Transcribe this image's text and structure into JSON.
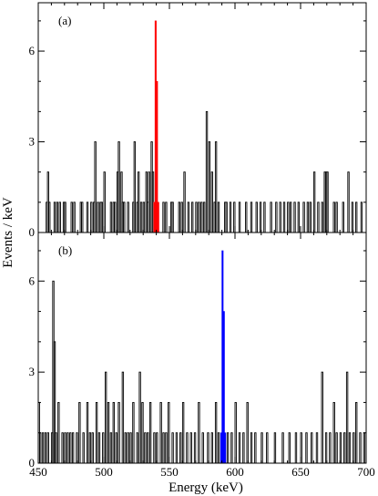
{
  "chart_data": {
    "type": "histogram",
    "xlabel": "Energy (keV)",
    "ylabel": "Events / keV",
    "xlim": [
      450,
      700
    ],
    "xticks": [
      450,
      500,
      550,
      600,
      650,
      700
    ],
    "grid": false,
    "panels": [
      {
        "label": "(a)",
        "ylim": [
          0,
          7.6
        ],
        "yticks": [
          0,
          3,
          6
        ],
        "highlight_color": "#ff0000",
        "highlight": [
          {
            "x": 538,
            "y": 1
          },
          {
            "x": 539,
            "y": 7
          },
          {
            "x": 540,
            "y": 5
          },
          {
            "x": 541,
            "y": 1
          }
        ],
        "counts": [
          {
            "x": 456,
            "y": 1
          },
          {
            "x": 457,
            "y": 2
          },
          {
            "x": 458,
            "y": 1
          },
          {
            "x": 462,
            "y": 1
          },
          {
            "x": 464,
            "y": 1
          },
          {
            "x": 466,
            "y": 1
          },
          {
            "x": 469,
            "y": 1
          },
          {
            "x": 470,
            "y": 1
          },
          {
            "x": 475,
            "y": 1
          },
          {
            "x": 477,
            "y": 1
          },
          {
            "x": 482,
            "y": 1
          },
          {
            "x": 483,
            "y": 1
          },
          {
            "x": 487,
            "y": 1
          },
          {
            "x": 490,
            "y": 1
          },
          {
            "x": 492,
            "y": 1
          },
          {
            "x": 493,
            "y": 3
          },
          {
            "x": 495,
            "y": 1
          },
          {
            "x": 497,
            "y": 1
          },
          {
            "x": 498,
            "y": 1
          },
          {
            "x": 500,
            "y": 2
          },
          {
            "x": 505,
            "y": 1
          },
          {
            "x": 507,
            "y": 1
          },
          {
            "x": 508,
            "y": 1
          },
          {
            "x": 510,
            "y": 2
          },
          {
            "x": 511,
            "y": 3
          },
          {
            "x": 513,
            "y": 2
          },
          {
            "x": 514,
            "y": 1
          },
          {
            "x": 515,
            "y": 1
          },
          {
            "x": 518,
            "y": 1
          },
          {
            "x": 522,
            "y": 1
          },
          {
            "x": 523,
            "y": 3
          },
          {
            "x": 525,
            "y": 1
          },
          {
            "x": 526,
            "y": 2
          },
          {
            "x": 528,
            "y": 1
          },
          {
            "x": 530,
            "y": 1
          },
          {
            "x": 532,
            "y": 2
          },
          {
            "x": 533,
            "y": 1
          },
          {
            "x": 534,
            "y": 2
          },
          {
            "x": 536,
            "y": 3
          },
          {
            "x": 537,
            "y": 2
          },
          {
            "x": 545,
            "y": 1
          },
          {
            "x": 547,
            "y": 1
          },
          {
            "x": 551,
            "y": 1
          },
          {
            "x": 552,
            "y": 1
          },
          {
            "x": 557,
            "y": 1
          },
          {
            "x": 559,
            "y": 1
          },
          {
            "x": 561,
            "y": 2
          },
          {
            "x": 564,
            "y": 1
          },
          {
            "x": 567,
            "y": 1
          },
          {
            "x": 570,
            "y": 1
          },
          {
            "x": 572,
            "y": 1
          },
          {
            "x": 574,
            "y": 1
          },
          {
            "x": 576,
            "y": 1
          },
          {
            "x": 578,
            "y": 4
          },
          {
            "x": 580,
            "y": 3
          },
          {
            "x": 582,
            "y": 2
          },
          {
            "x": 584,
            "y": 1
          },
          {
            "x": 585,
            "y": 3
          },
          {
            "x": 587,
            "y": 1
          },
          {
            "x": 592,
            "y": 1
          },
          {
            "x": 593,
            "y": 1
          },
          {
            "x": 596,
            "y": 1
          },
          {
            "x": 599,
            "y": 1
          },
          {
            "x": 603,
            "y": 1
          },
          {
            "x": 608,
            "y": 1
          },
          {
            "x": 612,
            "y": 1
          },
          {
            "x": 616,
            "y": 1
          },
          {
            "x": 619,
            "y": 1
          },
          {
            "x": 622,
            "y": 1
          },
          {
            "x": 627,
            "y": 1
          },
          {
            "x": 631,
            "y": 1
          },
          {
            "x": 634,
            "y": 1
          },
          {
            "x": 637,
            "y": 1
          },
          {
            "x": 640,
            "y": 1
          },
          {
            "x": 642,
            "y": 1
          },
          {
            "x": 645,
            "y": 1
          },
          {
            "x": 648,
            "y": 1
          },
          {
            "x": 652,
            "y": 1
          },
          {
            "x": 655,
            "y": 1
          },
          {
            "x": 657,
            "y": 1
          },
          {
            "x": 660,
            "y": 2
          },
          {
            "x": 663,
            "y": 1
          },
          {
            "x": 666,
            "y": 1
          },
          {
            "x": 668,
            "y": 2
          },
          {
            "x": 669,
            "y": 2
          },
          {
            "x": 670,
            "y": 2
          },
          {
            "x": 675,
            "y": 1
          },
          {
            "x": 677,
            "y": 1
          },
          {
            "x": 682,
            "y": 1
          },
          {
            "x": 686,
            "y": 2
          },
          {
            "x": 689,
            "y": 1
          },
          {
            "x": 692,
            "y": 1
          },
          {
            "x": 696,
            "y": 1
          }
        ]
      },
      {
        "label": "(b)",
        "ylim": [
          0,
          7.6
        ],
        "yticks": [
          0,
          3,
          6
        ],
        "highlight_color": "#0000ff",
        "highlight": [
          {
            "x": 589,
            "y": 1
          },
          {
            "x": 590,
            "y": 7
          },
          {
            "x": 591,
            "y": 5
          },
          {
            "x": 592,
            "y": 1
          }
        ],
        "counts": [
          {
            "x": 450,
            "y": 2
          },
          {
            "x": 451,
            "y": 1
          },
          {
            "x": 453,
            "y": 1
          },
          {
            "x": 455,
            "y": 1
          },
          {
            "x": 457,
            "y": 1
          },
          {
            "x": 460,
            "y": 1
          },
          {
            "x": 461,
            "y": 6
          },
          {
            "x": 462,
            "y": 4
          },
          {
            "x": 463,
            "y": 1
          },
          {
            "x": 465,
            "y": 2
          },
          {
            "x": 468,
            "y": 1
          },
          {
            "x": 470,
            "y": 1
          },
          {
            "x": 472,
            "y": 1
          },
          {
            "x": 474,
            "y": 1
          },
          {
            "x": 476,
            "y": 1
          },
          {
            "x": 479,
            "y": 1
          },
          {
            "x": 481,
            "y": 2
          },
          {
            "x": 484,
            "y": 1
          },
          {
            "x": 487,
            "y": 2
          },
          {
            "x": 489,
            "y": 1
          },
          {
            "x": 491,
            "y": 1
          },
          {
            "x": 494,
            "y": 2
          },
          {
            "x": 496,
            "y": 1
          },
          {
            "x": 499,
            "y": 1
          },
          {
            "x": 501,
            "y": 3
          },
          {
            "x": 503,
            "y": 2
          },
          {
            "x": 505,
            "y": 1
          },
          {
            "x": 507,
            "y": 2
          },
          {
            "x": 509,
            "y": 1
          },
          {
            "x": 511,
            "y": 2
          },
          {
            "x": 514,
            "y": 3
          },
          {
            "x": 516,
            "y": 1
          },
          {
            "x": 518,
            "y": 1
          },
          {
            "x": 520,
            "y": 1
          },
          {
            "x": 522,
            "y": 2
          },
          {
            "x": 525,
            "y": 1
          },
          {
            "x": 527,
            "y": 3
          },
          {
            "x": 529,
            "y": 2
          },
          {
            "x": 531,
            "y": 1
          },
          {
            "x": 533,
            "y": 1
          },
          {
            "x": 535,
            "y": 2
          },
          {
            "x": 538,
            "y": 1
          },
          {
            "x": 540,
            "y": 1
          },
          {
            "x": 543,
            "y": 2
          },
          {
            "x": 545,
            "y": 1
          },
          {
            "x": 547,
            "y": 1
          },
          {
            "x": 549,
            "y": 2
          },
          {
            "x": 552,
            "y": 1
          },
          {
            "x": 555,
            "y": 1
          },
          {
            "x": 558,
            "y": 1
          },
          {
            "x": 560,
            "y": 2
          },
          {
            "x": 563,
            "y": 1
          },
          {
            "x": 566,
            "y": 1
          },
          {
            "x": 569,
            "y": 1
          },
          {
            "x": 572,
            "y": 2
          },
          {
            "x": 575,
            "y": 1
          },
          {
            "x": 579,
            "y": 1
          },
          {
            "x": 582,
            "y": 1
          },
          {
            "x": 585,
            "y": 2
          },
          {
            "x": 587,
            "y": 1
          },
          {
            "x": 594,
            "y": 1
          },
          {
            "x": 597,
            "y": 1
          },
          {
            "x": 600,
            "y": 2
          },
          {
            "x": 603,
            "y": 1
          },
          {
            "x": 606,
            "y": 1
          },
          {
            "x": 609,
            "y": 2
          },
          {
            "x": 612,
            "y": 1
          },
          {
            "x": 615,
            "y": 1
          },
          {
            "x": 620,
            "y": 1
          },
          {
            "x": 624,
            "y": 1
          },
          {
            "x": 630,
            "y": 1
          },
          {
            "x": 636,
            "y": 1
          },
          {
            "x": 641,
            "y": 1
          },
          {
            "x": 646,
            "y": 1
          },
          {
            "x": 650,
            "y": 1
          },
          {
            "x": 654,
            "y": 1
          },
          {
            "x": 658,
            "y": 1
          },
          {
            "x": 662,
            "y": 1
          },
          {
            "x": 666,
            "y": 3
          },
          {
            "x": 669,
            "y": 1
          },
          {
            "x": 672,
            "y": 1
          },
          {
            "x": 675,
            "y": 2
          },
          {
            "x": 677,
            "y": 1
          },
          {
            "x": 680,
            "y": 1
          },
          {
            "x": 683,
            "y": 1
          },
          {
            "x": 685,
            "y": 3
          },
          {
            "x": 687,
            "y": 1
          },
          {
            "x": 690,
            "y": 1
          },
          {
            "x": 692,
            "y": 2
          },
          {
            "x": 695,
            "y": 1
          },
          {
            "x": 698,
            "y": 1
          }
        ]
      }
    ]
  }
}
